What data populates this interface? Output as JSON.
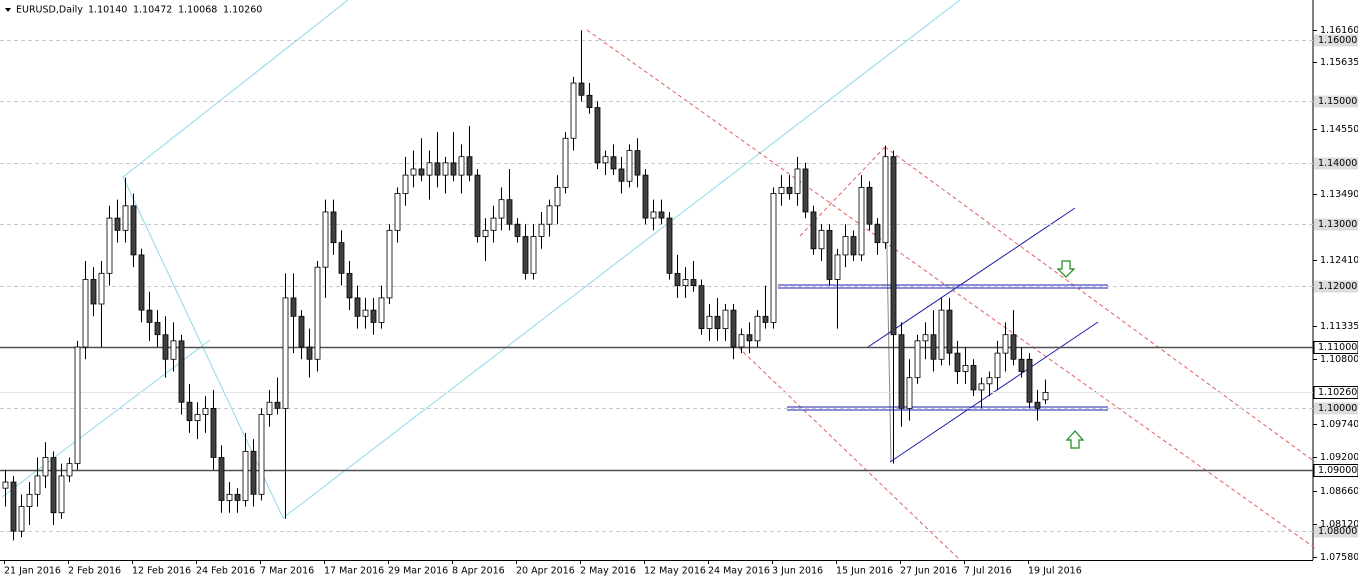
{
  "chart_data": {
    "type": "candlestick",
    "title": "EURUSD,Daily",
    "header_ohlc": [
      "1.10140",
      "1.10472",
      "1.10068",
      "1.10260"
    ],
    "categories": [
      "21 Jan 2016",
      null,
      null,
      null,
      null,
      null,
      null,
      null,
      "2 Feb 2016",
      null,
      null,
      null,
      null,
      null,
      null,
      null,
      "12 Feb 2016",
      null,
      null,
      null,
      null,
      null,
      null,
      null,
      "24 Feb 2016",
      null,
      null,
      null,
      null,
      null,
      null,
      null,
      "7 Mar 2016",
      null,
      null,
      null,
      null,
      null,
      null,
      null,
      "17 Mar 2016",
      null,
      null,
      null,
      null,
      null,
      null,
      null,
      "29 Mar 2016",
      null,
      null,
      null,
      null,
      null,
      null,
      null,
      "8 Apr 2016",
      null,
      null,
      null,
      null,
      null,
      null,
      null,
      "20 Apr 2016",
      null,
      null,
      null,
      null,
      null,
      null,
      null,
      "2 May 2016",
      null,
      null,
      null,
      null,
      null,
      null,
      null,
      "12 May 2016",
      null,
      null,
      null,
      null,
      null,
      null,
      null,
      "24 May 2016",
      null,
      null,
      null,
      null,
      null,
      null,
      null,
      "3 Jun 2016",
      null,
      null,
      null,
      null,
      null,
      null,
      null,
      "15 Jun 2016",
      null,
      null,
      null,
      null,
      null,
      null,
      null,
      "27 Jun 2016",
      null,
      null,
      null,
      null,
      null,
      null,
      null,
      "7 Jul 2016",
      null,
      null,
      null,
      null,
      null,
      null,
      null,
      "19 Jul 2016",
      null,
      null
    ],
    "ohlc": [
      [
        1.087,
        1.09,
        1.084,
        1.088
      ],
      [
        1.088,
        1.089,
        1.0785,
        1.08
      ],
      [
        1.08,
        1.086,
        1.079,
        1.084
      ],
      [
        1.084,
        1.088,
        1.081,
        1.086
      ],
      [
        1.086,
        1.092,
        1.084,
        1.089
      ],
      [
        1.089,
        1.0945,
        1.087,
        1.092
      ],
      [
        1.092,
        1.093,
        1.081,
        1.083
      ],
      [
        1.083,
        1.091,
        1.082,
        1.089
      ],
      [
        1.089,
        1.092,
        1.088,
        1.091
      ],
      [
        1.091,
        1.111,
        1.09,
        1.11
      ],
      [
        1.11,
        1.124,
        1.108,
        1.121
      ],
      [
        1.121,
        1.123,
        1.115,
        1.117
      ],
      [
        1.117,
        1.124,
        1.11,
        1.122
      ],
      [
        1.122,
        1.133,
        1.12,
        1.131
      ],
      [
        1.131,
        1.134,
        1.127,
        1.129
      ],
      [
        1.129,
        1.1376,
        1.127,
        1.133
      ],
      [
        1.133,
        1.135,
        1.123,
        1.125
      ],
      [
        1.125,
        1.126,
        1.114,
        1.116
      ],
      [
        1.116,
        1.119,
        1.111,
        1.114
      ],
      [
        1.114,
        1.116,
        1.11,
        1.112
      ],
      [
        1.112,
        1.115,
        1.105,
        1.108
      ],
      [
        1.108,
        1.114,
        1.106,
        1.111
      ],
      [
        1.111,
        1.112,
        1.099,
        1.101
      ],
      [
        1.101,
        1.104,
        1.096,
        1.098
      ],
      [
        1.098,
        1.101,
        1.095,
        1.099
      ],
      [
        1.099,
        1.102,
        1.096,
        1.1
      ],
      [
        1.1,
        1.103,
        1.09,
        1.092
      ],
      [
        1.092,
        1.094,
        1.083,
        1.085
      ],
      [
        1.085,
        1.088,
        1.083,
        1.086
      ],
      [
        1.086,
        1.087,
        1.083,
        1.085
      ],
      [
        1.085,
        1.096,
        1.084,
        1.093
      ],
      [
        1.093,
        1.095,
        1.084,
        1.086
      ],
      [
        1.086,
        1.1,
        1.085,
        1.099
      ],
      [
        1.099,
        1.103,
        1.097,
        1.101
      ],
      [
        1.101,
        1.105,
        1.099,
        1.1
      ],
      [
        1.1,
        1.122,
        1.082,
        1.118
      ],
      [
        1.118,
        1.122,
        1.109,
        1.115
      ],
      [
        1.115,
        1.116,
        1.108,
        1.11
      ],
      [
        1.11,
        1.113,
        1.105,
        1.108
      ],
      [
        1.108,
        1.124,
        1.106,
        1.123
      ],
      [
        1.123,
        1.134,
        1.118,
        1.132
      ],
      [
        1.132,
        1.134,
        1.125,
        1.127
      ],
      [
        1.127,
        1.129,
        1.12,
        1.122
      ],
      [
        1.122,
        1.124,
        1.116,
        1.118
      ],
      [
        1.118,
        1.12,
        1.113,
        1.115
      ],
      [
        1.115,
        1.118,
        1.113,
        1.116
      ],
      [
        1.116,
        1.118,
        1.112,
        1.114
      ],
      [
        1.114,
        1.12,
        1.113,
        1.118
      ],
      [
        1.118,
        1.13,
        1.117,
        1.129
      ],
      [
        1.129,
        1.136,
        1.127,
        1.135
      ],
      [
        1.135,
        1.141,
        1.133,
        1.138
      ],
      [
        1.138,
        1.142,
        1.136,
        1.139
      ],
      [
        1.139,
        1.144,
        1.137,
        1.138
      ],
      [
        1.138,
        1.142,
        1.134,
        1.14
      ],
      [
        1.14,
        1.145,
        1.136,
        1.138
      ],
      [
        1.138,
        1.141,
        1.135,
        1.14
      ],
      [
        1.14,
        1.145,
        1.137,
        1.138
      ],
      [
        1.138,
        1.143,
        1.135,
        1.141
      ],
      [
        1.141,
        1.146,
        1.137,
        1.138
      ],
      [
        1.138,
        1.139,
        1.127,
        1.128
      ],
      [
        1.128,
        1.131,
        1.124,
        1.129
      ],
      [
        1.129,
        1.133,
        1.127,
        1.131
      ],
      [
        1.131,
        1.136,
        1.129,
        1.134
      ],
      [
        1.134,
        1.139,
        1.129,
        1.13
      ],
      [
        1.13,
        1.131,
        1.127,
        1.128
      ],
      [
        1.128,
        1.13,
        1.121,
        1.122
      ],
      [
        1.122,
        1.13,
        1.121,
        1.128
      ],
      [
        1.128,
        1.132,
        1.126,
        1.13
      ],
      [
        1.13,
        1.134,
        1.128,
        1.133
      ],
      [
        1.133,
        1.138,
        1.13,
        1.136
      ],
      [
        1.136,
        1.145,
        1.135,
        1.144
      ],
      [
        1.144,
        1.154,
        1.142,
        1.153
      ],
      [
        1.153,
        1.1616,
        1.15,
        1.151
      ],
      [
        1.151,
        1.153,
        1.148,
        1.149
      ],
      [
        1.149,
        1.15,
        1.139,
        1.14
      ],
      [
        1.14,
        1.142,
        1.138,
        1.141
      ],
      [
        1.141,
        1.143,
        1.138,
        1.139
      ],
      [
        1.139,
        1.141,
        1.135,
        1.137
      ],
      [
        1.137,
        1.143,
        1.136,
        1.142
      ],
      [
        1.142,
        1.144,
        1.136,
        1.138
      ],
      [
        1.138,
        1.139,
        1.13,
        1.131
      ],
      [
        1.131,
        1.134,
        1.129,
        1.132
      ],
      [
        1.132,
        1.134,
        1.13,
        1.131
      ],
      [
        1.131,
        1.132,
        1.121,
        1.122
      ],
      [
        1.122,
        1.125,
        1.118,
        1.12
      ],
      [
        1.12,
        1.123,
        1.118,
        1.121
      ],
      [
        1.121,
        1.124,
        1.119,
        1.12
      ],
      [
        1.12,
        1.121,
        1.112,
        1.113
      ],
      [
        1.113,
        1.117,
        1.111,
        1.115
      ],
      [
        1.115,
        1.118,
        1.111,
        1.113
      ],
      [
        1.113,
        1.117,
        1.111,
        1.116
      ],
      [
        1.116,
        1.117,
        1.108,
        1.11
      ],
      [
        1.11,
        1.113,
        1.109,
        1.112
      ],
      [
        1.112,
        1.114,
        1.109,
        1.111
      ],
      [
        1.111,
        1.116,
        1.11,
        1.115
      ],
      [
        1.115,
        1.12,
        1.113,
        1.114
      ],
      [
        1.114,
        1.136,
        1.113,
        1.135
      ],
      [
        1.135,
        1.138,
        1.133,
        1.136
      ],
      [
        1.136,
        1.138,
        1.134,
        1.135
      ],
      [
        1.135,
        1.141,
        1.133,
        1.139
      ],
      [
        1.139,
        1.14,
        1.131,
        1.132
      ],
      [
        1.132,
        1.133,
        1.125,
        1.126
      ],
      [
        1.126,
        1.13,
        1.124,
        1.129
      ],
      [
        1.129,
        1.13,
        1.12,
        1.121
      ],
      [
        1.121,
        1.126,
        1.113,
        1.125
      ],
      [
        1.125,
        1.13,
        1.123,
        1.128
      ],
      [
        1.128,
        1.129,
        1.124,
        1.125
      ],
      [
        1.125,
        1.138,
        1.124,
        1.136
      ],
      [
        1.136,
        1.137,
        1.129,
        1.13
      ],
      [
        1.13,
        1.131,
        1.125,
        1.127
      ],
      [
        1.127,
        1.1428,
        1.126,
        1.141
      ],
      [
        1.141,
        1.142,
        1.091,
        1.112
      ],
      [
        1.112,
        1.114,
        1.097,
        1.1
      ],
      [
        1.1,
        1.108,
        1.098,
        1.105
      ],
      [
        1.105,
        1.112,
        1.104,
        1.111
      ],
      [
        1.111,
        1.114,
        1.108,
        1.112
      ],
      [
        1.112,
        1.116,
        1.106,
        1.108
      ],
      [
        1.108,
        1.118,
        1.107,
        1.116
      ],
      [
        1.116,
        1.118,
        1.107,
        1.109
      ],
      [
        1.109,
        1.111,
        1.104,
        1.106
      ],
      [
        1.106,
        1.11,
        1.104,
        1.107
      ],
      [
        1.107,
        1.108,
        1.102,
        1.103
      ],
      [
        1.103,
        1.105,
        1.1,
        1.104
      ],
      [
        1.104,
        1.106,
        1.102,
        1.105
      ],
      [
        1.105,
        1.111,
        1.103,
        1.109
      ],
      [
        1.109,
        1.114,
        1.106,
        1.112
      ],
      [
        1.112,
        1.116,
        1.107,
        1.108
      ],
      [
        1.108,
        1.11,
        1.105,
        1.106
      ],
      [
        1.108,
        1.109,
        1.1,
        1.101
      ],
      [
        1.101,
        1.103,
        1.098,
        1.1
      ],
      [
        1.1014,
        1.1047,
        1.1007,
        1.1026
      ]
    ],
    "up_color": "#ffffff",
    "down_color": "#404040",
    "wick_color": "#000000",
    "ylim": [
      1.0753,
      1.1662
    ],
    "yticks": [
      {
        "value": 1.1616,
        "label": "1.16160"
      },
      {
        "value": 1.15635,
        "label": "1.15635"
      },
      {
        "value": 1.1455,
        "label": "1.14550"
      },
      {
        "value": 1.1349,
        "label": "1.13490"
      },
      {
        "value": 1.1241,
        "label": "1.12410"
      },
      {
        "value": 1.11335,
        "label": "1.11335"
      },
      {
        "value": 1.108,
        "label": "1.10800"
      },
      {
        "value": 1.0974,
        "label": "1.09740"
      },
      {
        "value": 1.092,
        "label": "1.09200"
      },
      {
        "value": 1.0866,
        "label": "1.08660"
      },
      {
        "value": 1.0812,
        "label": "1.08120"
      },
      {
        "value": 1.0758,
        "label": "1.07580"
      }
    ],
    "levels": [
      {
        "value": 1.16,
        "label": "1.16000"
      },
      {
        "value": 1.15,
        "label": "1.15000"
      },
      {
        "value": 1.14,
        "label": "1.14000"
      },
      {
        "value": 1.13,
        "label": "1.13000"
      },
      {
        "value": 1.12,
        "label": "1.12000"
      },
      {
        "value": 1.1,
        "label": "1.10000"
      },
      {
        "value": 1.08,
        "label": "1.08000"
      }
    ],
    "hlines": [
      {
        "value": 1.11,
        "label": "1.11000"
      },
      {
        "value": 1.09,
        "label": "1.09000"
      }
    ],
    "current": {
      "value": 1.1026,
      "label": "1.10260"
    }
  }
}
